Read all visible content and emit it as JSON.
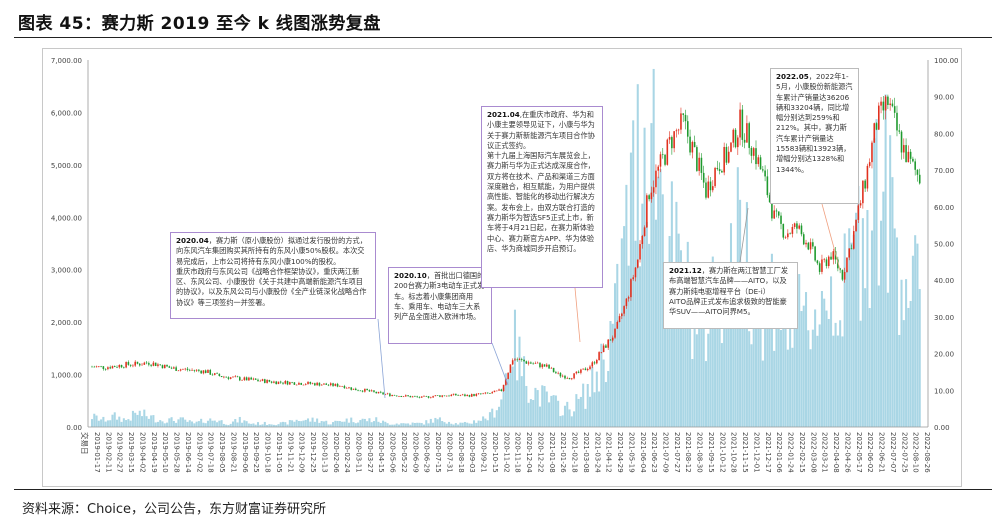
{
  "title": "图表 45：赛力斯 2019 至今 k 线图涨势复盘",
  "source": "资料来源：Choice，公司公告，东方财富证券研究所",
  "chart_data": {
    "type": "candlestick+bar",
    "xlabel": "交易日",
    "left_axis": {
      "ylim": [
        0,
        7000
      ],
      "ticks": [
        "0.00",
        "1,000.00",
        "2,000.00",
        "3,000.00",
        "4,000.00",
        "5,000.00",
        "6,000.00",
        "7,000.00"
      ]
    },
    "right_axis": {
      "ylim": [
        0,
        100
      ],
      "ticks": [
        "0.00",
        "10.00",
        "20.00",
        "30.00",
        "40.00",
        "50.00",
        "60.00",
        "70.00",
        "80.00",
        "90.00",
        "100.00"
      ]
    },
    "colors": {
      "up": "#e0301e",
      "down": "#1f9a2e",
      "volume": "#a9d6e5"
    },
    "x": [
      "2019-01-17",
      "2019-02-11",
      "2019-02-27",
      "2019-03-15",
      "2019-04-02",
      "2019-04-19",
      "2019-05-10",
      "2019-05-28",
      "2019-06-14",
      "2019-07-02",
      "2019-07-18",
      "2019-08-05",
      "2019-08-21",
      "2019-09-06",
      "2019-09-25",
      "2019-10-18",
      "2019-11-05",
      "2019-11-21",
      "2019-12-09",
      "2019-12-25",
      "2020-01-13",
      "2020-02-06",
      "2020-02-24",
      "2020-03-11",
      "2020-03-27",
      "2020-04-15",
      "2020-05-06",
      "2020-05-22",
      "2020-06-09",
      "2020-06-29",
      "2020-07-15",
      "2020-07-31",
      "2020-08-18",
      "2020-09-03",
      "2020-09-21",
      "2020-10-15",
      "2020-11-02",
      "2020-11-18",
      "2020-12-04",
      "2020-12-22",
      "2021-01-08",
      "2021-01-26",
      "2021-02-18",
      "2021-03-08",
      "2021-03-24",
      "2021-04-12",
      "2021-04-29",
      "2021-05-19",
      "2021-06-04",
      "2021-06-23",
      "2021-07-09",
      "2021-07-27",
      "2021-08-12",
      "2021-08-30",
      "2021-09-15",
      "2021-10-12",
      "2021-10-28",
      "2021-11-15",
      "2021-12-01",
      "2021-12-17",
      "2022-01-06",
      "2022-01-24",
      "2022-02-15",
      "2022-03-08",
      "2022-03-21",
      "2022-04-08",
      "2022-04-26",
      "2022-05-17",
      "2022-06-02",
      "2022-06-21",
      "2022-07-07",
      "2022-07-25",
      "2022-08-10",
      "2022-08-26"
    ],
    "close": [
      1150,
      1140,
      1160,
      1190,
      1200,
      1230,
      1180,
      1120,
      1100,
      1080,
      1060,
      980,
      950,
      920,
      900,
      880,
      860,
      850,
      840,
      830,
      820,
      800,
      790,
      720,
      700,
      650,
      620,
      600,
      580,
      560,
      590,
      600,
      610,
      600,
      620,
      640,
      700,
      1300,
      1250,
      1200,
      1150,
      1000,
      950,
      1050,
      1200,
      1500,
      1800,
      2400,
      3200,
      4500,
      5000,
      5500,
      5800,
      5200,
      4500,
      5000,
      5200,
      5800,
      5400,
      4800,
      4000,
      3700,
      3800,
      3500,
      3000,
      3300,
      2900,
      3700,
      4700,
      5800,
      6200,
      5500,
      5000,
      4700
    ],
    "volume": [
      3,
      2,
      3,
      2,
      4,
      3,
      2,
      2,
      2,
      1,
      2,
      2,
      1,
      2,
      1,
      1,
      1,
      1,
      2,
      2,
      2,
      1,
      2,
      2,
      2,
      2,
      1,
      1,
      1,
      1,
      2,
      2,
      1,
      1,
      2,
      3,
      8,
      25,
      15,
      10,
      8,
      6,
      5,
      8,
      12,
      20,
      30,
      55,
      75,
      90,
      70,
      50,
      40,
      35,
      30,
      45,
      40,
      55,
      45,
      35,
      40,
      30,
      30,
      30,
      35,
      40,
      35,
      50,
      60,
      70,
      65,
      50,
      40,
      35
    ]
  },
  "annotations": [
    {
      "date": "2020.04",
      "text": "，赛力斯（原小康股份）拟通过发行股份的方式，向东风汽车集团购买其所持有的东风小康50%股权。本次交易完成后，上市公司将持有东风小康100%的股权。\n重庆市政府与东风公司《战略合作框架协议》，重庆两江新区、东风公司、小康股份《关于共建中高端新能源汽车项目的协议》，以及东风公司与小康股份《全产业链深化战略合作协议》等三项签约一并签署。"
    },
    {
      "date": "2020.10",
      "text": "，首批出口德国的200台赛力斯3电动车正式发车。标志着小康集团商用车、乘用车、电动车三大系列产品全面进入欧洲市场。"
    },
    {
      "date": "2021.04",
      "text": ",在重庆市政府、华为和小康主要领导见证下，小康与华为关于赛力斯新能源汽车项目合作协议正式签约。\n第十九届上海国际汽车展览会上，赛力斯与华为正式达成深度合作，双方将在技术、产品和渠道三方面深度融合，相互赋能，为用户提供高性能、智能化的移动出行解决方案。发布会上，由双方联合打造的赛力斯华为智选SF5正式上市，新车将于4月21日起，在赛力斯体验中心、赛力斯官方APP、华为体验店、华为商城同步开启预订。"
    },
    {
      "date": "2022.05",
      "text": "，2022年1-5月，小康股份新能源汽车累计产销量达36206辆和33204辆，同比增幅分别达到259%和212%。其中，赛力斯汽车累计产销量达15583辆和13923辆，增幅分别达1328%和1344%。"
    },
    {
      "date": "2021.12",
      "text": "，赛力斯在两江智慧工厂发布高端智慧汽车品牌——AITO，以及赛力斯纯电驱增程平台（DE-i）\nAITO品牌正式发布追求极致的智能豪华SUV——AITO问界M5。"
    }
  ]
}
